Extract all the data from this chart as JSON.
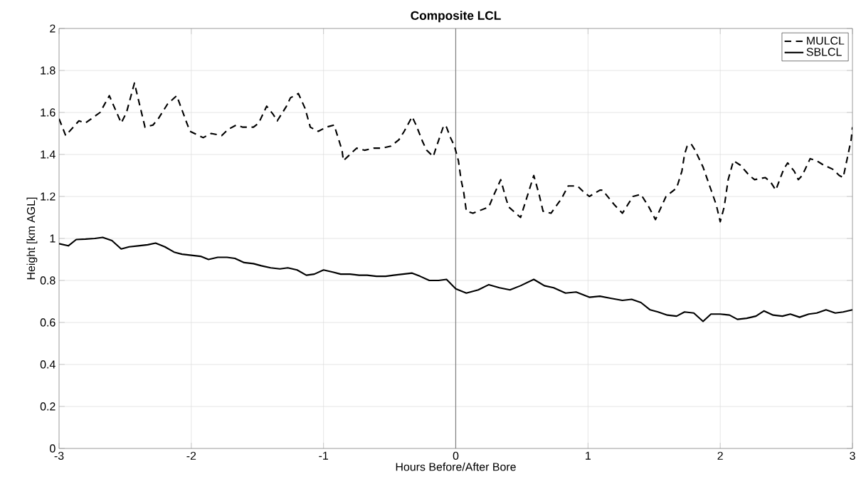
{
  "chart_data": {
    "type": "line",
    "title": "Composite LCL",
    "xlabel": "Hours Before/After Bore",
    "ylabel": "Height [km AGL]",
    "xlim": [
      -3,
      3
    ],
    "xticks": [
      -3,
      -2,
      -1,
      0,
      1,
      2,
      3
    ],
    "ylim": [
      0,
      2
    ],
    "yticks": [
      0,
      0.2,
      0.4,
      0.6,
      0.8,
      1,
      1.2,
      1.4,
      1.6,
      1.8,
      2
    ],
    "grid": true,
    "legend": "top right",
    "ref_lines": [
      {
        "axis": "x",
        "value": 0,
        "color": "#808080"
      }
    ],
    "series": [
      {
        "name": "MULCL",
        "color": "#000000",
        "line_style": "dashed",
        "x": [
          -3.0,
          -2.95,
          -2.85,
          -2.8,
          -2.69,
          -2.62,
          -2.53,
          -2.49,
          -2.43,
          -2.35,
          -2.29,
          -2.25,
          -2.18,
          -2.11,
          -2.04,
          -2.01,
          -1.91,
          -1.85,
          -1.77,
          -1.72,
          -1.66,
          -1.61,
          -1.53,
          -1.49,
          -1.43,
          -1.38,
          -1.35,
          -1.28,
          -1.25,
          -1.19,
          -1.14,
          -1.1,
          -1.04,
          -0.98,
          -0.92,
          -0.86,
          -0.85,
          -0.8,
          -0.75,
          -0.69,
          -0.62,
          -0.56,
          -0.49,
          -0.43,
          -0.39,
          -0.33,
          -0.3,
          -0.25,
          -0.22,
          -0.17,
          -0.15,
          -0.09,
          -0.07,
          -0.04,
          -0.01,
          0.02,
          0.04,
          0.06,
          0.08,
          0.13,
          0.25,
          0.29,
          0.34,
          0.38,
          0.4,
          0.49,
          0.53,
          0.59,
          0.63,
          0.66,
          0.72,
          0.8,
          0.85,
          0.92,
          0.97,
          1.01,
          1.09,
          1.11,
          1.2,
          1.26,
          1.34,
          1.4,
          1.46,
          1.51,
          1.59,
          1.67,
          1.71,
          1.73,
          1.75,
          1.78,
          1.81,
          1.87,
          1.92,
          1.97,
          2.0,
          2.03,
          2.06,
          2.1,
          2.15,
          2.22,
          2.26,
          2.34,
          2.38,
          2.42,
          2.48,
          2.51,
          2.56,
          2.59,
          2.62,
          2.68,
          2.73,
          2.78,
          2.85,
          2.9,
          2.93,
          2.96,
          2.99,
          3.0
        ],
        "values": [
          1.57,
          1.49,
          1.56,
          1.55,
          1.6,
          1.68,
          1.55,
          1.6,
          1.74,
          1.53,
          1.54,
          1.57,
          1.64,
          1.68,
          1.56,
          1.51,
          1.48,
          1.5,
          1.49,
          1.52,
          1.54,
          1.53,
          1.53,
          1.55,
          1.63,
          1.59,
          1.56,
          1.63,
          1.67,
          1.69,
          1.62,
          1.53,
          1.51,
          1.53,
          1.54,
          1.42,
          1.37,
          1.4,
          1.43,
          1.42,
          1.43,
          1.43,
          1.44,
          1.47,
          1.51,
          1.58,
          1.54,
          1.46,
          1.42,
          1.39,
          1.43,
          1.54,
          1.53,
          1.48,
          1.44,
          1.37,
          1.28,
          1.22,
          1.13,
          1.12,
          1.15,
          1.21,
          1.28,
          1.19,
          1.15,
          1.1,
          1.18,
          1.3,
          1.21,
          1.13,
          1.12,
          1.19,
          1.25,
          1.25,
          1.22,
          1.2,
          1.23,
          1.23,
          1.16,
          1.12,
          1.2,
          1.21,
          1.15,
          1.09,
          1.2,
          1.24,
          1.32,
          1.4,
          1.44,
          1.45,
          1.42,
          1.34,
          1.25,
          1.16,
          1.08,
          1.15,
          1.28,
          1.37,
          1.35,
          1.3,
          1.28,
          1.29,
          1.27,
          1.23,
          1.33,
          1.36,
          1.32,
          1.28,
          1.3,
          1.38,
          1.37,
          1.35,
          1.33,
          1.3,
          1.29,
          1.38,
          1.47,
          1.53
        ]
      },
      {
        "name": "SBLCL",
        "color": "#000000",
        "line_style": "solid",
        "x": [
          -3.0,
          -2.93,
          -2.87,
          -2.8,
          -2.73,
          -2.67,
          -2.6,
          -2.53,
          -2.47,
          -2.4,
          -2.33,
          -2.27,
          -2.2,
          -2.13,
          -2.07,
          -2.0,
          -1.93,
          -1.87,
          -1.8,
          -1.73,
          -1.67,
          -1.6,
          -1.53,
          -1.47,
          -1.4,
          -1.33,
          -1.27,
          -1.2,
          -1.13,
          -1.07,
          -1.0,
          -0.93,
          -0.87,
          -0.8,
          -0.73,
          -0.67,
          -0.6,
          -0.53,
          -0.47,
          -0.4,
          -0.33,
          -0.27,
          -0.2,
          -0.13,
          -0.07,
          0.0,
          0.08,
          0.17,
          0.25,
          0.33,
          0.41,
          0.49,
          0.59,
          0.67,
          0.74,
          0.83,
          0.91,
          1.01,
          1.09,
          1.17,
          1.26,
          1.33,
          1.4,
          1.47,
          1.53,
          1.6,
          1.67,
          1.73,
          1.8,
          1.87,
          1.93,
          2.0,
          2.07,
          2.13,
          2.2,
          2.27,
          2.33,
          2.4,
          2.47,
          2.53,
          2.6,
          2.67,
          2.73,
          2.8,
          2.87,
          2.93,
          3.0
        ],
        "values": [
          0.975,
          0.965,
          0.995,
          0.997,
          1.0,
          1.005,
          0.99,
          0.95,
          0.96,
          0.965,
          0.97,
          0.978,
          0.96,
          0.935,
          0.925,
          0.92,
          0.915,
          0.9,
          0.91,
          0.91,
          0.905,
          0.885,
          0.88,
          0.87,
          0.86,
          0.855,
          0.86,
          0.85,
          0.825,
          0.83,
          0.85,
          0.84,
          0.83,
          0.83,
          0.825,
          0.825,
          0.82,
          0.82,
          0.825,
          0.83,
          0.835,
          0.82,
          0.8,
          0.8,
          0.805,
          0.76,
          0.74,
          0.755,
          0.78,
          0.765,
          0.755,
          0.775,
          0.805,
          0.775,
          0.765,
          0.74,
          0.745,
          0.72,
          0.725,
          0.715,
          0.705,
          0.71,
          0.695,
          0.66,
          0.65,
          0.635,
          0.63,
          0.65,
          0.645,
          0.605,
          0.64,
          0.64,
          0.635,
          0.615,
          0.62,
          0.63,
          0.655,
          0.635,
          0.63,
          0.64,
          0.625,
          0.64,
          0.645,
          0.66,
          0.645,
          0.65,
          0.66
        ]
      }
    ]
  }
}
